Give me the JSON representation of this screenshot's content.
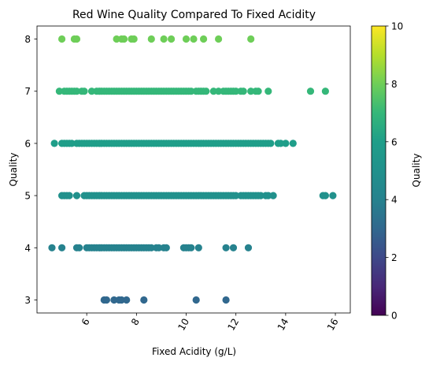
{
  "chart_data": {
    "type": "scatter",
    "title": "Red Wine Quality Compared To Fixed Acidity",
    "xlabel": "Fixed Acidity (g/L)",
    "ylabel": "Quality",
    "xlim": [
      4.0,
      16.6
    ],
    "ylim": [
      2.75,
      8.25
    ],
    "xticks": [
      6,
      8,
      10,
      12,
      14,
      16
    ],
    "yticks": [
      3,
      4,
      5,
      6,
      7,
      8
    ],
    "grid": false,
    "colorbar": {
      "label": "Quality",
      "colormap": "viridis",
      "range": [
        0,
        10
      ],
      "ticks": [
        0,
        2,
        4,
        6,
        8,
        10
      ]
    },
    "color_by": "quality",
    "points": {
      "3": [
        6.7,
        6.8,
        7.1,
        7.3,
        7.4,
        7.6,
        8.3,
        10.4,
        11.6
      ],
      "4": [
        4.6,
        5.0,
        5.6,
        5.7,
        6.0,
        6.1,
        6.2,
        6.3,
        6.4,
        6.5,
        6.6,
        6.7,
        6.8,
        6.9,
        7.0,
        7.1,
        7.2,
        7.3,
        7.4,
        7.5,
        7.6,
        7.7,
        7.8,
        7.9,
        8.0,
        8.1,
        8.2,
        8.3,
        8.4,
        8.5,
        8.6,
        8.8,
        8.9,
        9.1,
        9.2,
        9.9,
        10.0,
        10.1,
        10.2,
        10.5,
        11.6,
        11.9,
        12.5
      ],
      "5": [
        5.0,
        5.1,
        5.2,
        5.3,
        5.6,
        5.9,
        6.0,
        6.1,
        6.2,
        6.3,
        6.4,
        6.5,
        6.6,
        6.7,
        6.8,
        6.9,
        7.0,
        7.1,
        7.2,
        7.3,
        7.4,
        7.5,
        7.6,
        7.7,
        7.8,
        7.9,
        8.0,
        8.1,
        8.2,
        8.3,
        8.4,
        8.5,
        8.6,
        8.7,
        8.8,
        8.9,
        9.0,
        9.1,
        9.2,
        9.3,
        9.4,
        9.5,
        9.6,
        9.7,
        9.8,
        9.9,
        10.0,
        10.1,
        10.2,
        10.3,
        10.4,
        10.5,
        10.6,
        10.7,
        10.8,
        10.9,
        11.0,
        11.1,
        11.2,
        11.3,
        11.4,
        11.5,
        11.6,
        11.7,
        11.8,
        11.9,
        12.0,
        12.2,
        12.3,
        12.4,
        12.5,
        12.6,
        12.7,
        12.8,
        12.9,
        13.0,
        13.2,
        13.3,
        13.5,
        15.5,
        15.6,
        15.9
      ],
      "6": [
        4.7,
        5.0,
        5.1,
        5.2,
        5.3,
        5.4,
        5.6,
        5.7,
        5.8,
        5.9,
        6.0,
        6.1,
        6.2,
        6.3,
        6.4,
        6.5,
        6.6,
        6.7,
        6.8,
        6.9,
        7.0,
        7.1,
        7.2,
        7.3,
        7.4,
        7.5,
        7.6,
        7.7,
        7.8,
        7.9,
        8.0,
        8.1,
        8.2,
        8.3,
        8.4,
        8.5,
        8.6,
        8.7,
        8.8,
        8.9,
        9.0,
        9.1,
        9.2,
        9.3,
        9.4,
        9.5,
        9.6,
        9.7,
        9.8,
        9.9,
        10.0,
        10.1,
        10.2,
        10.3,
        10.4,
        10.5,
        10.6,
        10.7,
        10.8,
        10.9,
        11.0,
        11.1,
        11.2,
        11.3,
        11.4,
        11.5,
        11.6,
        11.7,
        11.8,
        11.9,
        12.0,
        12.1,
        12.2,
        12.3,
        12.4,
        12.5,
        12.6,
        12.7,
        12.8,
        12.9,
        13.0,
        13.1,
        13.2,
        13.3,
        13.4,
        13.7,
        13.8,
        14.0,
        14.3
      ],
      "7": [
        4.9,
        5.1,
        5.2,
        5.3,
        5.4,
        5.5,
        5.6,
        5.8,
        5.9,
        6.2,
        6.4,
        6.5,
        6.6,
        6.7,
        6.8,
        6.9,
        7.0,
        7.1,
        7.2,
        7.3,
        7.4,
        7.5,
        7.6,
        7.7,
        7.8,
        7.9,
        8.0,
        8.1,
        8.2,
        8.3,
        8.4,
        8.5,
        8.6,
        8.7,
        8.8,
        8.9,
        9.0,
        9.1,
        9.2,
        9.3,
        9.4,
        9.5,
        9.6,
        9.7,
        9.8,
        9.9,
        10.0,
        10.1,
        10.2,
        10.4,
        10.5,
        10.6,
        10.7,
        10.8,
        11.1,
        11.3,
        11.5,
        11.6,
        11.7,
        11.8,
        11.9,
        12.0,
        12.2,
        12.3,
        12.6,
        12.8,
        12.9,
        13.3,
        15.0,
        15.6
      ],
      "8": [
        5.0,
        5.5,
        5.6,
        7.2,
        7.4,
        7.5,
        7.8,
        7.9,
        8.6,
        9.1,
        9.4,
        10.0,
        10.3,
        10.7,
        11.3,
        12.6
      ]
    }
  }
}
